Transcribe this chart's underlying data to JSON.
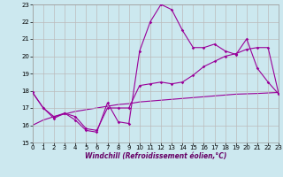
{
  "xlabel": "Windchill (Refroidissement éolien,°C)",
  "background_color": "#cce8ef",
  "line_color": "#990099",
  "grid_color": "#bbbbbb",
  "xlim": [
    0,
    23
  ],
  "ylim": [
    15,
    23
  ],
  "yticks": [
    15,
    16,
    17,
    18,
    19,
    20,
    21,
    22,
    23
  ],
  "xticks": [
    0,
    1,
    2,
    3,
    4,
    5,
    6,
    7,
    8,
    9,
    10,
    11,
    12,
    13,
    14,
    15,
    16,
    17,
    18,
    19,
    20,
    21,
    22,
    23
  ],
  "curve1_x": [
    0,
    1,
    2,
    3,
    4,
    5,
    6,
    7,
    8,
    9,
    10,
    11,
    12,
    13,
    14,
    15,
    16,
    17,
    18,
    19,
    20,
    21,
    22,
    23
  ],
  "curve1_y": [
    17.9,
    17.0,
    16.4,
    16.7,
    16.3,
    15.7,
    15.6,
    17.3,
    16.2,
    16.1,
    20.3,
    22.0,
    23.0,
    22.7,
    21.5,
    20.5,
    20.5,
    20.7,
    20.3,
    20.1,
    21.0,
    19.3,
    18.5,
    17.8
  ],
  "curve2_x": [
    0,
    1,
    2,
    3,
    4,
    5,
    6,
    7,
    8,
    9,
    10,
    11,
    12,
    13,
    14,
    15,
    16,
    17,
    18,
    19,
    20,
    21,
    22,
    23
  ],
  "curve2_y": [
    17.9,
    17.0,
    16.5,
    16.7,
    16.5,
    15.8,
    15.7,
    17.0,
    17.0,
    17.0,
    18.3,
    18.4,
    18.5,
    18.4,
    18.5,
    18.9,
    19.4,
    19.7,
    20.0,
    20.15,
    20.4,
    20.5,
    20.5,
    17.8
  ],
  "curve3_x": [
    0,
    1,
    2,
    3,
    4,
    5,
    6,
    7,
    8,
    9,
    10,
    11,
    12,
    13,
    14,
    15,
    16,
    17,
    18,
    19,
    20,
    21,
    22,
    23
  ],
  "curve3_y": [
    16.0,
    16.3,
    16.5,
    16.65,
    16.8,
    16.9,
    17.0,
    17.1,
    17.2,
    17.25,
    17.35,
    17.4,
    17.45,
    17.5,
    17.55,
    17.6,
    17.65,
    17.7,
    17.75,
    17.8,
    17.82,
    17.84,
    17.87,
    17.9
  ]
}
